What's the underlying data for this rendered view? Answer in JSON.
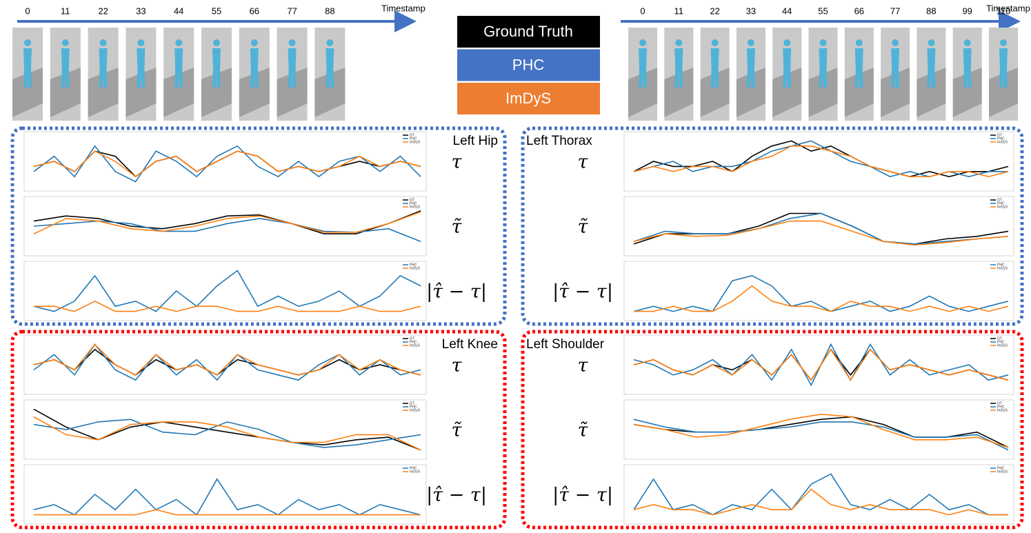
{
  "left_timeline": {
    "label": "Timestamp",
    "ticks": [
      0,
      11,
      22,
      33,
      44,
      55,
      66,
      77,
      88
    ]
  },
  "right_timeline": {
    "label": "Timestamp",
    "ticks": [
      0,
      11,
      22,
      33,
      44,
      55,
      66,
      77,
      88,
      99,
      110
    ]
  },
  "legend": [
    {
      "label": "Ground Truth",
      "color": "#000000"
    },
    {
      "label": "PHC",
      "color": "#4472c4"
    },
    {
      "label": "ImDyS",
      "color": "#ed7d31"
    }
  ],
  "panels": [
    {
      "title": "Left Hip",
      "border_color": "#4472c4",
      "row_labels": [
        "τ",
        "τ̃",
        "|τ̂ − τ|"
      ]
    },
    {
      "title": "Left Thorax",
      "border_color": "#4472c4",
      "row_labels": [
        "τ",
        "τ̃",
        "|τ̂ − τ|"
      ]
    },
    {
      "title": "Left Knee",
      "border_color": "#ff0000",
      "row_labels": [
        "τ",
        "τ̃",
        "|τ̂ − τ|"
      ]
    },
    {
      "title": "Left Shoulder",
      "border_color": "#ff0000",
      "row_labels": [
        "τ",
        "τ̃",
        "|τ̂ − τ|"
      ]
    }
  ],
  "chart_data": [
    {
      "type": "line",
      "ylim": [
        0,
        10
      ],
      "series": [
        {
          "name": "GT",
          "color": "#000000",
          "values": [
            4,
            5,
            3,
            7,
            6,
            2,
            5,
            6,
            3,
            5,
            7,
            6,
            3,
            4,
            3,
            4,
            5,
            4,
            5,
            4
          ]
        },
        {
          "name": "PHC",
          "color": "#1f77b4",
          "values": [
            3,
            6,
            2,
            8,
            3,
            1,
            7,
            5,
            2,
            6,
            8,
            4,
            2,
            5,
            2,
            5,
            6,
            3,
            6,
            2
          ]
        },
        {
          "name": "ImDyS",
          "color": "#ff7f0e",
          "values": [
            4,
            5,
            3,
            7,
            5,
            2,
            5,
            6,
            3,
            5,
            7,
            6,
            3,
            4,
            3,
            4,
            6,
            4,
            5,
            4
          ]
        }
      ]
    },
    {
      "type": "line",
      "ylim": [
        0,
        10
      ],
      "series": [
        {
          "name": "GT",
          "color": "#000000",
          "values": [
            6,
            7,
            6.5,
            5,
            4.5,
            5.5,
            7,
            7.2,
            5.5,
            3.5,
            3.5,
            5.5,
            8
          ]
        },
        {
          "name": "PHC",
          "color": "#1f77b4",
          "values": [
            5,
            5.5,
            6,
            5.5,
            4,
            4,
            5.5,
            6.5,
            5.5,
            4,
            3.8,
            4.5,
            2
          ]
        },
        {
          "name": "ImDyS",
          "color": "#ff7f0e",
          "values": [
            3.5,
            6.5,
            6,
            4.5,
            4,
            5,
            6.5,
            7,
            5.5,
            3.8,
            3.8,
            5.5,
            7.8
          ]
        }
      ]
    },
    {
      "type": "line",
      "ylim": [
        0,
        10
      ],
      "series": [
        {
          "name": "PHC",
          "color": "#1f77b4",
          "values": [
            2,
            1,
            3,
            8,
            2,
            3,
            1,
            5,
            2,
            6,
            9,
            2,
            4,
            2,
            3,
            5,
            2,
            4,
            8,
            6
          ]
        },
        {
          "name": "ImDyS",
          "color": "#ff7f0e",
          "values": [
            2,
            2,
            1,
            3,
            1,
            1,
            2,
            1,
            2,
            2,
            1,
            1,
            2,
            1,
            1,
            1,
            2,
            1,
            1,
            2
          ]
        }
      ]
    },
    {
      "type": "line",
      "ylim": [
        0,
        10
      ],
      "series": [
        {
          "name": "GT",
          "color": "#000000",
          "values": [
            3,
            5,
            4,
            4,
            5,
            3,
            6,
            8,
            9,
            7,
            8,
            6,
            4,
            3,
            2,
            3,
            2,
            3,
            3,
            4
          ]
        },
        {
          "name": "PHC",
          "color": "#1f77b4",
          "values": [
            3,
            4,
            5,
            3,
            4,
            4,
            5,
            7,
            8,
            9,
            7,
            5,
            4,
            2,
            3,
            2,
            3,
            2,
            3,
            3
          ]
        },
        {
          "name": "ImDyS",
          "color": "#ff7f0e",
          "values": [
            3,
            4,
            3,
            4,
            4,
            3,
            5,
            6,
            8,
            8,
            7,
            6,
            4,
            3,
            2,
            2,
            3,
            3,
            2,
            3
          ]
        }
      ]
    },
    {
      "type": "line",
      "ylim": [
        0,
        10
      ],
      "series": [
        {
          "name": "GT",
          "color": "#000000",
          "values": [
            1.5,
            3.5,
            3.5,
            3.5,
            5,
            7.5,
            7.5,
            5,
            2,
            1.5,
            2.5,
            3,
            4
          ]
        },
        {
          "name": "PHC",
          "color": "#1f77b4",
          "values": [
            2,
            4,
            3.5,
            3.5,
            4.5,
            6.5,
            7.5,
            5,
            2,
            1.5,
            2,
            2.5,
            3
          ]
        },
        {
          "name": "ImDyS",
          "color": "#ff7f0e",
          "values": [
            2,
            3.5,
            3,
            3.2,
            4.5,
            6,
            6,
            4,
            2,
            1.3,
            1.8,
            2.5,
            3
          ]
        }
      ]
    },
    {
      "type": "line",
      "ylim": [
        0,
        10
      ],
      "series": [
        {
          "name": "PHC",
          "color": "#1f77b4",
          "values": [
            1,
            2,
            1,
            2,
            1,
            7,
            8,
            6,
            2,
            3,
            1,
            2,
            3,
            1,
            2,
            4,
            2,
            1,
            2,
            3
          ]
        },
        {
          "name": "ImDyS",
          "color": "#ff7f0e",
          "values": [
            1,
            1,
            2,
            1,
            1,
            3,
            6,
            3,
            2,
            2,
            1,
            3,
            2,
            2,
            1,
            2,
            1,
            2,
            1,
            2
          ]
        }
      ]
    },
    {
      "type": "line",
      "ylim": [
        0,
        10
      ],
      "series": [
        {
          "name": "GT",
          "color": "#000000",
          "values": [
            5,
            6,
            4,
            8,
            5,
            3,
            6,
            4,
            5,
            3,
            6,
            5,
            4,
            3,
            4,
            6,
            4,
            5,
            4,
            3
          ]
        },
        {
          "name": "PHC",
          "color": "#1f77b4",
          "values": [
            4,
            7,
            3,
            9,
            4,
            2,
            7,
            3,
            6,
            2,
            7,
            4,
            3,
            2,
            5,
            7,
            3,
            6,
            3,
            4
          ]
        },
        {
          "name": "ImDyS",
          "color": "#ff7f0e",
          "values": [
            5,
            6,
            4,
            9,
            5,
            3,
            7,
            4,
            5,
            3,
            7,
            5,
            4,
            3,
            4,
            7,
            4,
            6,
            4,
            3
          ]
        }
      ]
    },
    {
      "type": "line",
      "ylim": [
        0,
        10
      ],
      "series": [
        {
          "name": "GT",
          "color": "#000000",
          "values": [
            9,
            5.5,
            3,
            5.5,
            6.5,
            5.5,
            4.5,
            3.5,
            2.5,
            2,
            3,
            3.5,
            1
          ]
        },
        {
          "name": "PHC",
          "color": "#1f77b4",
          "values": [
            6,
            5,
            6.5,
            7,
            4.5,
            4,
            6.5,
            5,
            2.5,
            1.5,
            2,
            3,
            4
          ]
        },
        {
          "name": "ImDyS",
          "color": "#ff7f0e",
          "values": [
            7.5,
            4,
            3,
            6,
            6.5,
            6.5,
            5.5,
            3.5,
            2.5,
            2.5,
            4,
            4,
            1
          ]
        }
      ]
    },
    {
      "type": "line",
      "ylim": [
        0,
        10
      ],
      "series": [
        {
          "name": "PHC",
          "color": "#1f77b4",
          "values": [
            2,
            3,
            1,
            5,
            2,
            6,
            2,
            4,
            1,
            8,
            2,
            3,
            1,
            4,
            2,
            3,
            1,
            3,
            2,
            1
          ]
        },
        {
          "name": "ImDyS",
          "color": "#ff7f0e",
          "values": [
            1,
            1,
            1,
            1,
            1,
            1,
            2,
            1,
            1,
            1,
            1,
            1,
            1,
            1,
            1,
            1,
            1,
            1,
            1,
            1
          ]
        }
      ]
    },
    {
      "type": "line",
      "ylim": [
        0,
        10
      ],
      "series": [
        {
          "name": "GT",
          "color": "#000000",
          "values": [
            5,
            6,
            4,
            3,
            5,
            4,
            6,
            3,
            7,
            2,
            8,
            3,
            8,
            4,
            5,
            4,
            3,
            4,
            3,
            2
          ]
        },
        {
          "name": "PHC",
          "color": "#1f77b4",
          "values": [
            6,
            5,
            3,
            4,
            6,
            3,
            7,
            2,
            8,
            1,
            9,
            2,
            9,
            3,
            6,
            3,
            4,
            5,
            2,
            3
          ]
        },
        {
          "name": "ImDyS",
          "color": "#ff7f0e",
          "values": [
            5,
            6,
            4,
            3,
            5,
            3,
            6,
            3,
            7,
            2,
            8,
            2,
            8,
            4,
            5,
            4,
            3,
            4,
            3,
            2
          ]
        }
      ]
    },
    {
      "type": "line",
      "ylim": [
        0,
        10
      ],
      "series": [
        {
          "name": "GT",
          "color": "#000000",
          "values": [
            6,
            5,
            4.5,
            4.5,
            5,
            6,
            7,
            7.5,
            6,
            3.5,
            3.5,
            4.5,
            1.5
          ]
        },
        {
          "name": "PHC",
          "color": "#1f77b4",
          "values": [
            7,
            5.5,
            4.5,
            4.5,
            5,
            5.5,
            6.5,
            6.5,
            5.5,
            3.5,
            3.5,
            4,
            1
          ]
        },
        {
          "name": "ImDyS",
          "color": "#ff7f0e",
          "values": [
            6,
            5,
            3.5,
            4,
            5.5,
            7,
            8,
            7.5,
            5,
            3,
            3,
            3.5,
            1.5
          ]
        }
      ]
    },
    {
      "type": "line",
      "ylim": [
        0,
        10
      ],
      "series": [
        {
          "name": "PHC",
          "color": "#1f77b4",
          "values": [
            2,
            8,
            2,
            3,
            1,
            3,
            2,
            6,
            2,
            7,
            9,
            3,
            2,
            4,
            2,
            5,
            2,
            3,
            1,
            1
          ]
        },
        {
          "name": "ImDyS",
          "color": "#ff7f0e",
          "values": [
            2,
            3,
            2,
            2,
            1,
            2,
            3,
            2,
            2,
            6,
            3,
            2,
            3,
            2,
            2,
            2,
            1,
            2,
            1,
            1
          ]
        }
      ]
    }
  ]
}
